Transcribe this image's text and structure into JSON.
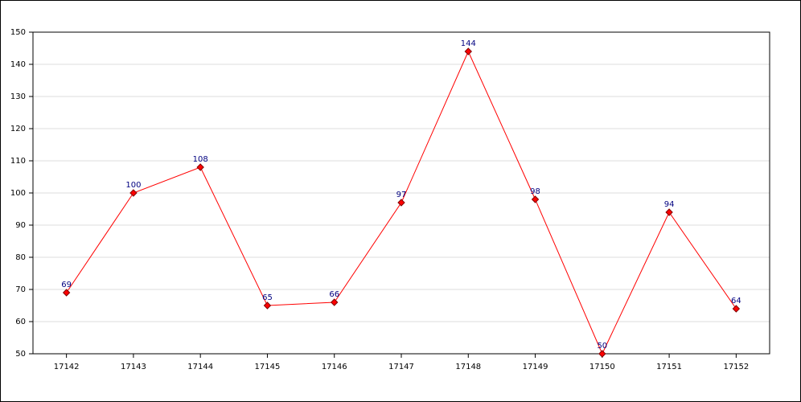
{
  "chart_data": {
    "type": "line",
    "categories": [
      "17142",
      "17143",
      "17144",
      "17145",
      "17146",
      "17147",
      "17148",
      "17149",
      "17150",
      "17151",
      "17152"
    ],
    "values": [
      69,
      100,
      108,
      65,
      66,
      97,
      144,
      98,
      50,
      94,
      64
    ],
    "color": "#ff0000",
    "label_color": "#000080",
    "ylim": [
      50,
      150
    ],
    "yticks": [
      50,
      60,
      70,
      80,
      90,
      100,
      110,
      120,
      130,
      140,
      150
    ],
    "grid": true
  }
}
